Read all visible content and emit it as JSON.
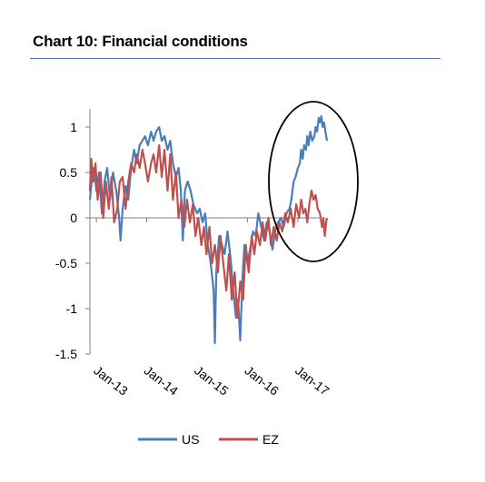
{
  "title": "Chart 10: Financial conditions",
  "chart_data": {
    "type": "line",
    "title": "Chart 10: Financial conditions",
    "xlabel": "",
    "ylabel": "",
    "x_range": [
      "2012-11-15",
      "2017-07-31"
    ],
    "ylim": [
      -1.5,
      1.2
    ],
    "y_ticks": [
      1,
      0.5,
      0,
      -0.5,
      -1,
      -1.5
    ],
    "y_tick_labels": [
      "1",
      "0.5",
      "0",
      "-0.5",
      "-1",
      "-1.5"
    ],
    "x_ticks": [
      "2013-01-01",
      "2014-01-01",
      "2015-01-01",
      "2016-01-01",
      "2017-01-01"
    ],
    "x_tick_labels": [
      "Jan-13",
      "Jan-14",
      "Jan-15",
      "Jan-16",
      "Jan-17"
    ],
    "grid": false,
    "legend_position": "bottom",
    "annotation": "ellipse highlighting 2017 divergence",
    "series": [
      {
        "name": "US",
        "color": "#4a7ebb",
        "points": [
          [
            "2012-11-15",
            0.2
          ],
          [
            "2012-12-01",
            0.45
          ],
          [
            "2012-12-15",
            0.55
          ],
          [
            "2013-01-01",
            0.3
          ],
          [
            "2013-01-20",
            0.5
          ],
          [
            "2013-02-10",
            0.05
          ],
          [
            "2013-03-01",
            0.4
          ],
          [
            "2013-03-20",
            0.55
          ],
          [
            "2013-04-10",
            0.2
          ],
          [
            "2013-05-01",
            0.5
          ],
          [
            "2013-05-25",
            0.3
          ],
          [
            "2013-06-15",
            0.0
          ],
          [
            "2013-06-25",
            -0.25
          ],
          [
            "2013-07-10",
            0.1
          ],
          [
            "2013-08-01",
            0.35
          ],
          [
            "2013-08-20",
            0.2
          ],
          [
            "2013-09-10",
            0.55
          ],
          [
            "2013-10-01",
            0.75
          ],
          [
            "2013-10-20",
            0.6
          ],
          [
            "2013-11-10",
            0.8
          ],
          [
            "2013-12-01",
            0.85
          ],
          [
            "2013-12-20",
            0.9
          ],
          [
            "2014-01-10",
            0.8
          ],
          [
            "2014-02-01",
            0.95
          ],
          [
            "2014-02-20",
            0.85
          ],
          [
            "2014-03-10",
            0.95
          ],
          [
            "2014-04-01",
            1.0
          ],
          [
            "2014-04-20",
            0.85
          ],
          [
            "2014-05-10",
            0.9
          ],
          [
            "2014-06-01",
            0.75
          ],
          [
            "2014-06-20",
            0.85
          ],
          [
            "2014-07-10",
            0.6
          ],
          [
            "2014-08-01",
            0.45
          ],
          [
            "2014-08-20",
            0.55
          ],
          [
            "2014-09-05",
            0.3
          ],
          [
            "2014-09-20",
            -0.25
          ],
          [
            "2014-10-05",
            0.3
          ],
          [
            "2014-10-25",
            0.4
          ],
          [
            "2014-11-15",
            0.3
          ],
          [
            "2014-12-05",
            0.15
          ],
          [
            "2015-01-01",
            0.05
          ],
          [
            "2015-01-20",
            0.1
          ],
          [
            "2015-02-10",
            -0.05
          ],
          [
            "2015-03-01",
            0.05
          ],
          [
            "2015-03-20",
            -0.3
          ],
          [
            "2015-04-10",
            -0.5
          ],
          [
            "2015-05-01",
            -0.8
          ],
          [
            "2015-05-10",
            -1.38
          ],
          [
            "2015-05-20",
            -0.6
          ],
          [
            "2015-06-10",
            -0.2
          ],
          [
            "2015-07-01",
            -0.3
          ],
          [
            "2015-07-20",
            -0.4
          ],
          [
            "2015-08-10",
            -0.15
          ],
          [
            "2015-09-01",
            -0.45
          ],
          [
            "2015-09-20",
            -0.8
          ],
          [
            "2015-10-10",
            -1.1
          ],
          [
            "2015-10-25",
            -0.9
          ],
          [
            "2015-11-10",
            -1.35
          ],
          [
            "2015-11-25",
            -0.7
          ],
          [
            "2015-12-10",
            -0.3
          ],
          [
            "2016-01-01",
            -0.5
          ],
          [
            "2016-01-20",
            -0.35
          ],
          [
            "2016-02-10",
            -0.15
          ],
          [
            "2016-03-01",
            -0.2
          ],
          [
            "2016-03-20",
            0.05
          ],
          [
            "2016-04-10",
            -0.1
          ],
          [
            "2016-05-01",
            -0.25
          ],
          [
            "2016-05-20",
            -0.05
          ],
          [
            "2016-06-10",
            -0.15
          ],
          [
            "2016-07-01",
            -0.35
          ],
          [
            "2016-07-20",
            -0.15
          ],
          [
            "2016-08-10",
            -0.05
          ],
          [
            "2016-09-01",
            0.0
          ],
          [
            "2016-09-20",
            -0.1
          ],
          [
            "2016-10-10",
            0.05
          ],
          [
            "2016-11-01",
            0.1
          ],
          [
            "2016-11-15",
            0.2
          ],
          [
            "2016-12-01",
            0.4
          ],
          [
            "2016-12-15",
            0.45
          ],
          [
            "2017-01-01",
            0.55
          ],
          [
            "2017-01-15",
            0.6
          ],
          [
            "2017-01-25",
            0.75
          ],
          [
            "2017-02-05",
            0.65
          ],
          [
            "2017-02-15",
            0.8
          ],
          [
            "2017-03-01",
            0.75
          ],
          [
            "2017-03-10",
            0.9
          ],
          [
            "2017-03-20",
            0.8
          ],
          [
            "2017-04-01",
            0.95
          ],
          [
            "2017-04-15",
            0.85
          ],
          [
            "2017-05-01",
            0.9
          ],
          [
            "2017-05-10",
            1.0
          ],
          [
            "2017-05-20",
            0.95
          ],
          [
            "2017-06-01",
            1.1
          ],
          [
            "2017-06-10",
            1.05
          ],
          [
            "2017-06-20",
            1.12
          ],
          [
            "2017-06-30",
            1.0
          ],
          [
            "2017-07-10",
            1.05
          ],
          [
            "2017-07-20",
            0.95
          ],
          [
            "2017-07-31",
            0.85
          ]
        ]
      },
      {
        "name": "EZ",
        "color": "#c0504d",
        "points": [
          [
            "2012-11-15",
            0.3
          ],
          [
            "2012-11-25",
            0.65
          ],
          [
            "2012-12-10",
            0.4
          ],
          [
            "2012-12-25",
            0.6
          ],
          [
            "2013-01-10",
            0.2
          ],
          [
            "2013-02-01",
            0.5
          ],
          [
            "2013-02-20",
            0.0
          ],
          [
            "2013-03-10",
            0.4
          ],
          [
            "2013-04-01",
            0.1
          ],
          [
            "2013-04-20",
            0.45
          ],
          [
            "2013-05-10",
            -0.05
          ],
          [
            "2013-06-01",
            0.1
          ],
          [
            "2013-06-20",
            0.4
          ],
          [
            "2013-07-10",
            0.45
          ],
          [
            "2013-08-01",
            0.1
          ],
          [
            "2013-08-20",
            0.4
          ],
          [
            "2013-09-10",
            0.6
          ],
          [
            "2013-10-01",
            0.5
          ],
          [
            "2013-10-20",
            0.7
          ],
          [
            "2013-11-10",
            0.55
          ],
          [
            "2013-12-01",
            0.75
          ],
          [
            "2013-12-20",
            0.6
          ],
          [
            "2014-01-10",
            0.4
          ],
          [
            "2014-02-01",
            0.6
          ],
          [
            "2014-02-20",
            0.7
          ],
          [
            "2014-03-10",
            0.5
          ],
          [
            "2014-04-01",
            0.8
          ],
          [
            "2014-04-20",
            0.45
          ],
          [
            "2014-05-10",
            0.75
          ],
          [
            "2014-06-01",
            0.3
          ],
          [
            "2014-06-20",
            0.7
          ],
          [
            "2014-07-10",
            0.2
          ],
          [
            "2014-08-01",
            0.5
          ],
          [
            "2014-08-20",
            0.0
          ],
          [
            "2014-09-10",
            0.2
          ],
          [
            "2014-10-01",
            -0.1
          ],
          [
            "2014-10-20",
            0.2
          ],
          [
            "2014-11-10",
            -0.05
          ],
          [
            "2014-12-01",
            0.15
          ],
          [
            "2014-12-20",
            -0.2
          ],
          [
            "2015-01-10",
            0.0
          ],
          [
            "2015-02-01",
            -0.3
          ],
          [
            "2015-02-20",
            -0.1
          ],
          [
            "2015-03-10",
            -0.4
          ],
          [
            "2015-04-01",
            -0.1
          ],
          [
            "2015-04-20",
            -0.5
          ],
          [
            "2015-05-10",
            -0.3
          ],
          [
            "2015-06-01",
            -0.6
          ],
          [
            "2015-06-20",
            -0.2
          ],
          [
            "2015-07-10",
            -0.5
          ],
          [
            "2015-08-01",
            -0.8
          ],
          [
            "2015-08-20",
            -0.4
          ],
          [
            "2015-09-10",
            -0.9
          ],
          [
            "2015-10-01",
            -0.6
          ],
          [
            "2015-10-20",
            -1.1
          ],
          [
            "2015-11-10",
            -0.7
          ],
          [
            "2015-12-01",
            -0.9
          ],
          [
            "2015-12-20",
            -0.3
          ],
          [
            "2016-01-10",
            -0.6
          ],
          [
            "2016-02-01",
            -0.2
          ],
          [
            "2016-02-20",
            -0.4
          ],
          [
            "2016-03-10",
            -0.15
          ],
          [
            "2016-04-01",
            -0.3
          ],
          [
            "2016-04-20",
            -0.05
          ],
          [
            "2016-05-10",
            -0.25
          ],
          [
            "2016-06-01",
            0.0
          ],
          [
            "2016-06-20",
            -0.3
          ],
          [
            "2016-07-10",
            -0.1
          ],
          [
            "2016-08-01",
            -0.25
          ],
          [
            "2016-08-20",
            -0.05
          ],
          [
            "2016-09-10",
            -0.15
          ],
          [
            "2016-10-01",
            0.05
          ],
          [
            "2016-10-20",
            -0.05
          ],
          [
            "2016-11-10",
            0.1
          ],
          [
            "2016-12-01",
            -0.1
          ],
          [
            "2016-12-20",
            0.15
          ],
          [
            "2017-01-10",
            0.0
          ],
          [
            "2017-01-25",
            0.2
          ],
          [
            "2017-02-10",
            0.05
          ],
          [
            "2017-02-25",
            0.1
          ],
          [
            "2017-03-10",
            -0.05
          ],
          [
            "2017-03-25",
            0.15
          ],
          [
            "2017-04-10",
            0.3
          ],
          [
            "2017-04-25",
            0.2
          ],
          [
            "2017-05-10",
            0.25
          ],
          [
            "2017-05-25",
            0.1
          ],
          [
            "2017-06-10",
            0.05
          ],
          [
            "2017-06-25",
            -0.1
          ],
          [
            "2017-07-05",
            0.0
          ],
          [
            "2017-07-15",
            -0.2
          ],
          [
            "2017-07-25",
            -0.05
          ],
          [
            "2017-07-31",
            0.0
          ]
        ]
      }
    ]
  }
}
